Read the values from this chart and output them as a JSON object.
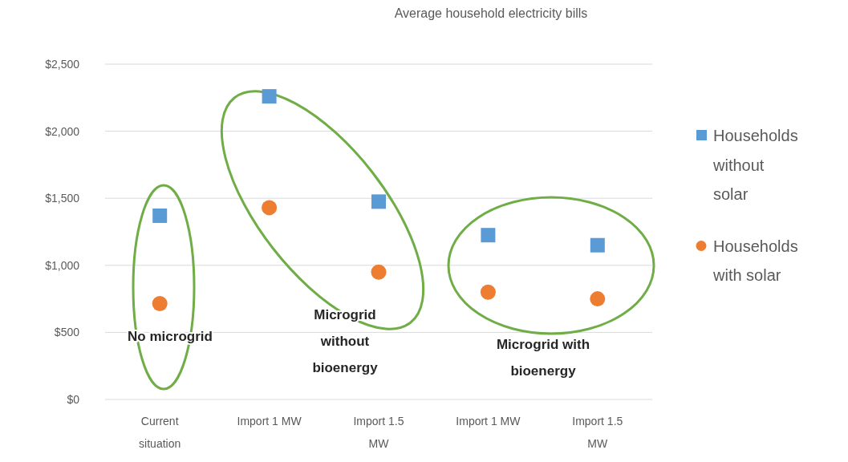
{
  "chart_data": {
    "type": "scatter",
    "title": "Average household electricity bills",
    "categories": [
      "Current situation",
      "Import 1 MW",
      "Import 1.5 MW",
      "Import 1 MW",
      "Import 1.5 MW"
    ],
    "series": [
      {
        "name": "Households without solar",
        "color": "#5b9bd5",
        "marker": "square",
        "values": [
          1370,
          2260,
          1475,
          1225,
          1150
        ]
      },
      {
        "name": "Households with solar",
        "color": "#ed7d31",
        "marker": "circle",
        "values": [
          715,
          1430,
          950,
          800,
          750
        ]
      }
    ],
    "ylim": [
      0,
      2500
    ],
    "yticks": [
      {
        "value": 0,
        "label": "$0"
      },
      {
        "value": 500,
        "label": "$500"
      },
      {
        "value": 1000,
        "label": "$1,000"
      },
      {
        "value": 1500,
        "label": "$1,500"
      },
      {
        "value": 2000,
        "label": "$2,000"
      },
      {
        "value": 2500,
        "label": "$2,500"
      }
    ],
    "grid": "y",
    "legend": "right",
    "annotations": [
      "No microgrid",
      "Microgrid\nwithout\nbioenergy",
      "Microgrid with\nbioenergy"
    ]
  }
}
